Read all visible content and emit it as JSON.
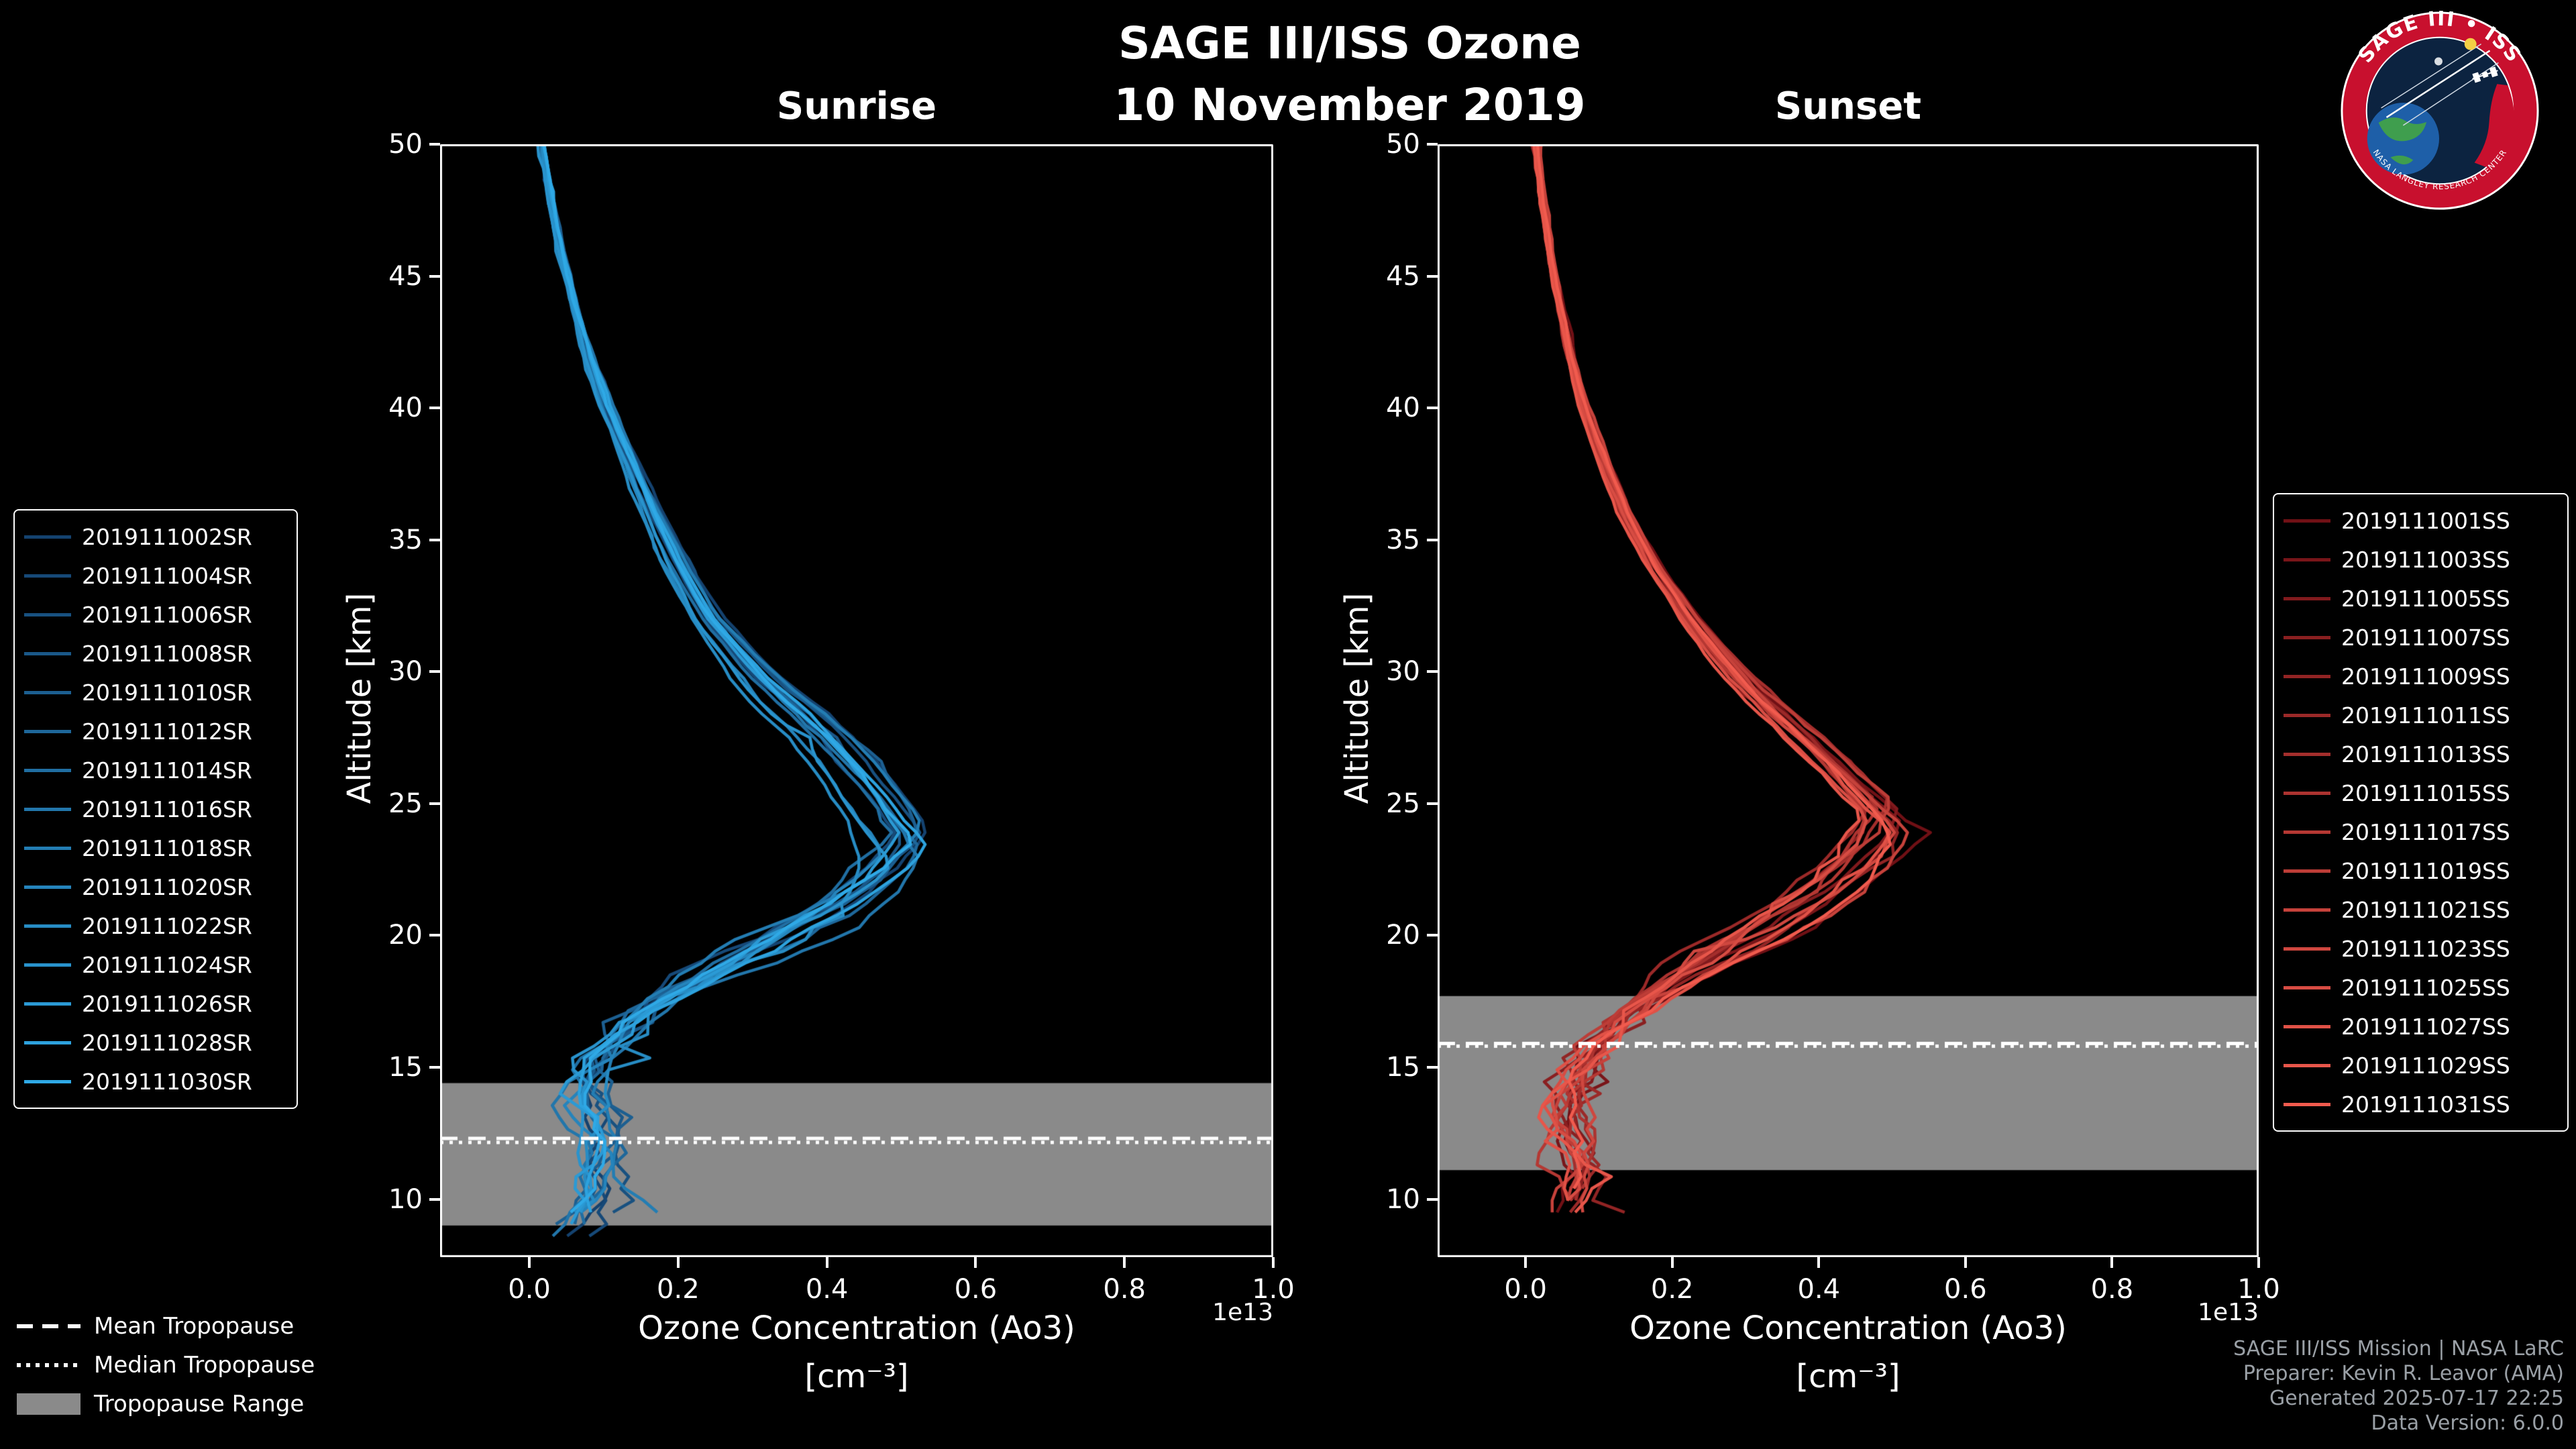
{
  "title": "SAGE III/ISS Ozone",
  "subtitle": "10 November 2019",
  "logo": {
    "arc_text": "SAGE III • ISS",
    "bottom_text": "NASA LANGLEY RESEARCH CENTER"
  },
  "tropopause_legend": {
    "mean": "Mean Tropopause",
    "median": "Median Tropopause",
    "range": "Tropopause Range"
  },
  "credits": [
    "SAGE III/ISS Mission | NASA LaRC",
    "Preparer: Kevin R. Leavor (AMA)",
    "Generated 2025-07-17 22:25",
    "Data Version: 6.0.0"
  ],
  "chart_data": [
    {
      "type": "line",
      "title": "Sunrise",
      "xlabel": "Ozone Concentration (Ao3)",
      "xlabel_units": "[cm⁻³]",
      "ylabel": "Altitude [km]",
      "offset_text": "1e13",
      "xlim": [
        -0.12,
        1.0
      ],
      "ylim": [
        7.8,
        50
      ],
      "xticks": [
        "0.0",
        "0.2",
        "0.4",
        "0.6",
        "0.8",
        "1.0"
      ],
      "yticks": [
        10,
        15,
        20,
        25,
        30,
        35,
        40,
        45,
        50
      ],
      "series": [
        "2019111002SR",
        "2019111004SR",
        "2019111006SR",
        "2019111008SR",
        "2019111010SR",
        "2019111012SR",
        "2019111014SR",
        "2019111016SR",
        "2019111018SR",
        "2019111020SR",
        "2019111022SR",
        "2019111024SR",
        "2019111026SR",
        "2019111028SR",
        "2019111030SR"
      ],
      "color_start": "#14426f",
      "color_end": "#2fa9e6",
      "profile": {
        "altitude_km": [
          50,
          48,
          46,
          44,
          42,
          40,
          38,
          36,
          34,
          32,
          30,
          29,
          28,
          27,
          26,
          25,
          24,
          23.5,
          23,
          22,
          21,
          20,
          19,
          18,
          17,
          16,
          15,
          14,
          13,
          12,
          11,
          10,
          9,
          8
        ],
        "ozone_1e13": [
          0.018,
          0.028,
          0.042,
          0.06,
          0.08,
          0.105,
          0.135,
          0.165,
          0.2,
          0.24,
          0.3,
          0.335,
          0.375,
          0.41,
          0.44,
          0.465,
          0.49,
          0.5,
          0.49,
          0.455,
          0.41,
          0.345,
          0.27,
          0.2,
          0.145,
          0.105,
          0.085,
          0.08,
          0.09,
          0.1,
          0.09,
          0.085,
          0.06,
          0.04
        ]
      },
      "peak": {
        "altitude_km": 23.5,
        "ozone_1e13": 0.5
      },
      "tropopause": {
        "mean_km": 12.3,
        "median_km": 12.15,
        "range_km": [
          9.0,
          14.4
        ],
        "band_color": "#8a8a8a"
      }
    },
    {
      "type": "line",
      "title": "Sunset",
      "xlabel": "Ozone Concentration (Ao3)",
      "xlabel_units": "[cm⁻³]",
      "ylabel": "Altitude [km]",
      "offset_text": "1e13",
      "xlim": [
        -0.12,
        1.0
      ],
      "ylim": [
        7.8,
        50
      ],
      "xticks": [
        "0.0",
        "0.2",
        "0.4",
        "0.6",
        "0.8",
        "1.0"
      ],
      "yticks": [
        10,
        15,
        20,
        25,
        30,
        35,
        40,
        45,
        50
      ],
      "series": [
        "2019111001SS",
        "2019111003SS",
        "2019111005SS",
        "2019111007SS",
        "2019111009SS",
        "2019111011SS",
        "2019111013SS",
        "2019111015SS",
        "2019111017SS",
        "2019111019SS",
        "2019111021SS",
        "2019111023SS",
        "2019111025SS",
        "2019111027SS",
        "2019111029SS",
        "2019111031SS"
      ],
      "color_start": "#701015",
      "color_end": "#f15b4e",
      "profile": {
        "altitude_km": [
          50,
          48,
          46,
          44,
          42,
          40,
          38,
          36,
          34,
          32,
          30,
          29,
          28,
          27,
          26,
          25,
          24.5,
          24,
          23,
          22,
          21,
          20,
          19,
          18,
          17,
          16,
          15,
          14,
          13,
          12,
          11,
          10,
          9
        ],
        "ozone_1e13": [
          0.015,
          0.022,
          0.032,
          0.045,
          0.06,
          0.08,
          0.105,
          0.135,
          0.175,
          0.225,
          0.285,
          0.32,
          0.36,
          0.4,
          0.435,
          0.47,
          0.49,
          0.48,
          0.455,
          0.42,
          0.37,
          0.315,
          0.25,
          0.19,
          0.14,
          0.1,
          0.075,
          0.06,
          0.055,
          0.06,
          0.07,
          0.065,
          0.05
        ]
      },
      "peak": {
        "altitude_km": 24.5,
        "ozone_1e13": 0.49
      },
      "tropopause": {
        "mean_km": 15.9,
        "median_km": 15.8,
        "range_km": [
          11.1,
          17.7
        ],
        "band_color": "#8a8a8a"
      }
    }
  ]
}
